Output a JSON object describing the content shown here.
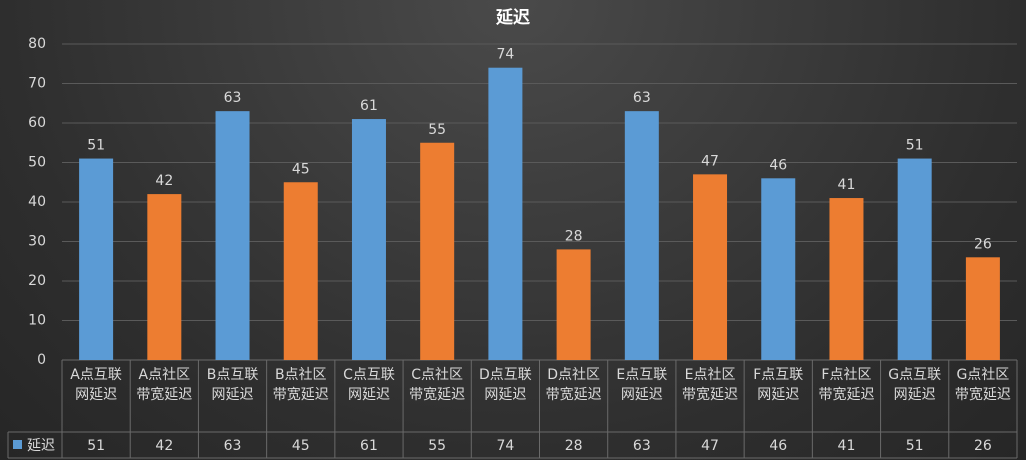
{
  "chart_data": {
    "type": "bar",
    "title": "延迟",
    "categories": [
      "A点互联网延迟",
      "A点社区带宽延迟",
      "B点互联网延迟",
      "B点社区带宽延迟",
      "C点互联网延迟",
      "C点社区带宽延迟",
      "D点互联网延迟",
      "D点社区带宽延迟",
      "E点互联网延迟",
      "E点社区带宽延迟",
      "F点互联网延迟",
      "F点社区带宽延迟",
      "G点互联网延迟",
      "G点社区带宽延迟"
    ],
    "series": [
      {
        "name": "延迟",
        "color": "#5b9bd5",
        "colors": [
          "#5b9bd5",
          "#ed7d31",
          "#5b9bd5",
          "#ed7d31",
          "#5b9bd5",
          "#ed7d31",
          "#5b9bd5",
          "#ed7d31",
          "#5b9bd5",
          "#ed7d31",
          "#5b9bd5",
          "#ed7d31",
          "#5b9bd5",
          "#ed7d31"
        ],
        "values": [
          51,
          42,
          63,
          45,
          61,
          55,
          74,
          28,
          63,
          47,
          46,
          41,
          51,
          26
        ]
      }
    ],
    "ylim": [
      0,
      80
    ],
    "yticks": [
      0,
      10,
      20,
      30,
      40,
      50,
      60,
      70,
      80
    ],
    "grid": true,
    "data_table": true
  }
}
